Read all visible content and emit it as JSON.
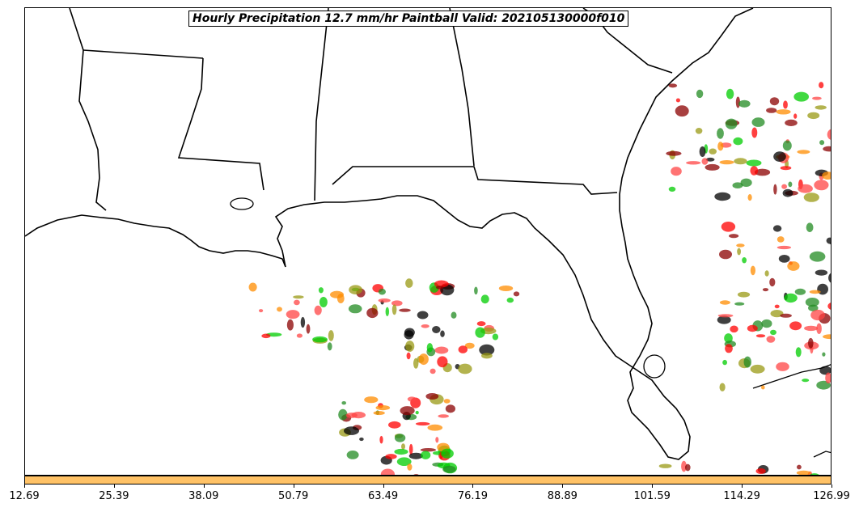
{
  "title": "Hourly Precipitation 12.7 mm/hr Paintball Valid: 202105130000f010",
  "colorbar": {
    "color": "#ffc266",
    "ticks": [
      "12.69",
      "25.39",
      "38.09",
      "50.79",
      "63.49",
      "76.19",
      "88.89",
      "101.59",
      "114.29",
      "126.99"
    ]
  },
  "member_colors": [
    "#ff0000",
    "#8b0000",
    "#ff8c00",
    "#9a9a14",
    "#228b22",
    "#00cc00",
    "#000000",
    "#ff4444"
  ]
}
